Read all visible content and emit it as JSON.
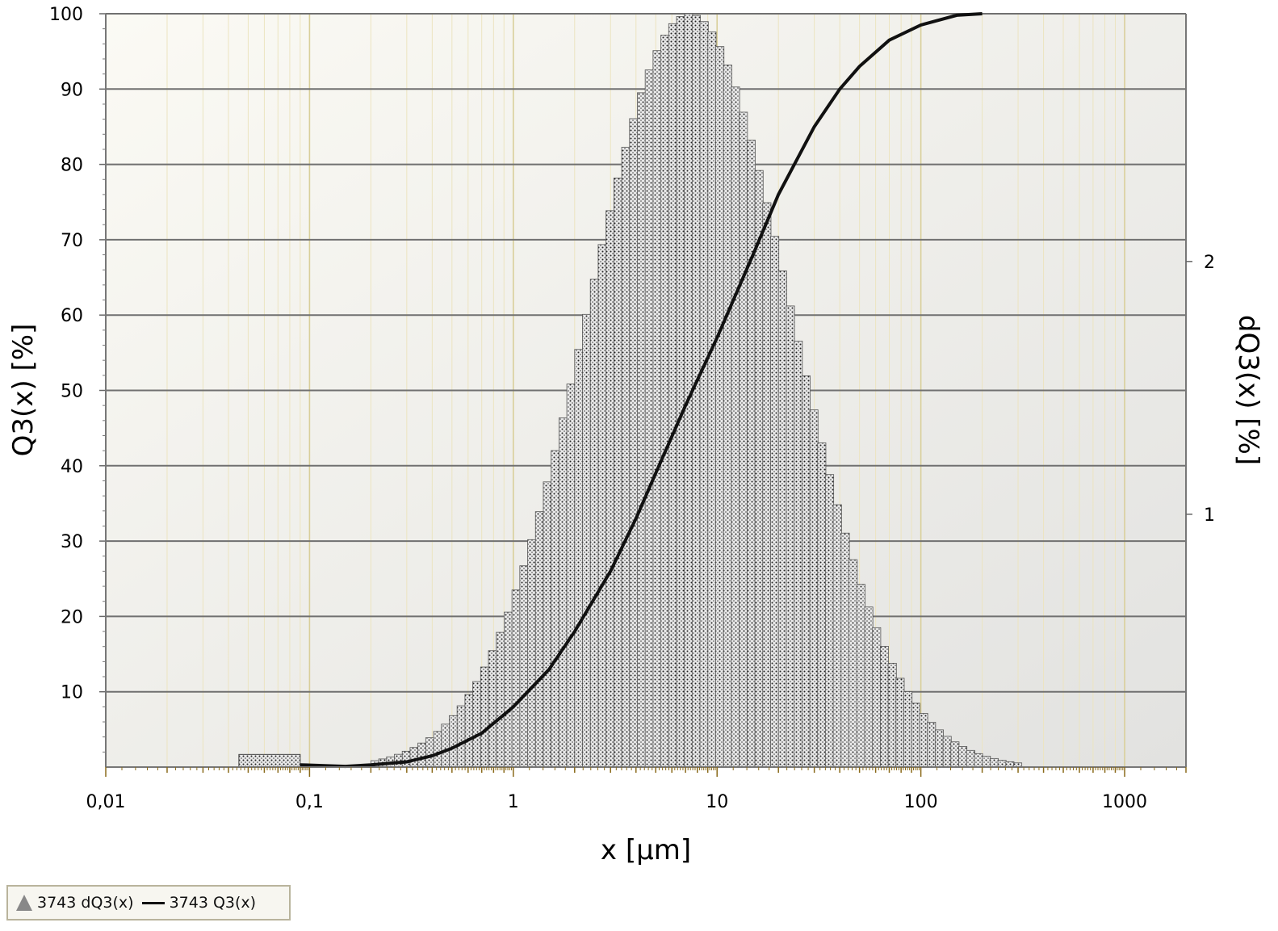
{
  "chart_data": {
    "type": "bar+line",
    "title": "",
    "xlabel": "x [µm]",
    "ylabel_left": "Q3(x) [%]",
    "ylabel_right": "dQ3(x) [%]",
    "x_scale": "log",
    "xlim": [
      0.01,
      2000
    ],
    "ylim_left": [
      0,
      100
    ],
    "ylim_right": [
      0,
      2.98
    ],
    "x_ticks": [
      {
        "value": 0.01,
        "label": "0,01"
      },
      {
        "value": 0.1,
        "label": "0,1"
      },
      {
        "value": 1,
        "label": "1"
      },
      {
        "value": 10,
        "label": "10"
      },
      {
        "value": 100,
        "label": "100"
      },
      {
        "value": 1000,
        "label": "1000"
      }
    ],
    "y_ticks_left": [
      {
        "value": 10,
        "label": "10"
      },
      {
        "value": 20,
        "label": "20"
      },
      {
        "value": 30,
        "label": "30"
      },
      {
        "value": 40,
        "label": "40"
      },
      {
        "value": 50,
        "label": "50"
      },
      {
        "value": 60,
        "label": "60"
      },
      {
        "value": 70,
        "label": "70"
      },
      {
        "value": 80,
        "label": "80"
      },
      {
        "value": 90,
        "label": "90"
      },
      {
        "value": 100,
        "label": "100"
      }
    ],
    "y_ticks_right": [
      {
        "value": 1,
        "label": "1"
      },
      {
        "value": 2,
        "label": "2"
      }
    ],
    "grid": true,
    "series": [
      {
        "name": "3743 dQ3(x)",
        "kind": "histogram",
        "axis": "right",
        "color": "#999999",
        "bins": [
          {
            "x0": 0.045,
            "x1": 0.09,
            "y": 0.05
          },
          {
            "x0": 0.09,
            "x1": 0.22,
            "y": 0.005
          }
        ],
        "gaussian_model": {
          "peak_x": 7.3,
          "peak_y": 2.98,
          "sigma_log10": 0.5,
          "bins_per_decade": 26,
          "x_start": 0.2,
          "x_end": 290
        }
      },
      {
        "name": "3743 Q3(x)",
        "kind": "line",
        "axis": "left",
        "color": "#111111",
        "points": [
          [
            0.09,
            0.3
          ],
          [
            0.15,
            0.1
          ],
          [
            0.2,
            0.3
          ],
          [
            0.3,
            0.7
          ],
          [
            0.4,
            1.5
          ],
          [
            0.5,
            2.5
          ],
          [
            0.7,
            4.5
          ],
          [
            1,
            8
          ],
          [
            1.5,
            13
          ],
          [
            2,
            18
          ],
          [
            3,
            26
          ],
          [
            4,
            33
          ],
          [
            5,
            39
          ],
          [
            7,
            48
          ],
          [
            10,
            57
          ],
          [
            15,
            68
          ],
          [
            20,
            76
          ],
          [
            30,
            85
          ],
          [
            40,
            90
          ],
          [
            50,
            93
          ],
          [
            70,
            96.5
          ],
          [
            100,
            98.5
          ],
          [
            150,
            99.8
          ],
          [
            200,
            100
          ]
        ]
      }
    ],
    "legend_position": "bottom-left"
  },
  "legend": {
    "item1": "3743 dQ3(x)",
    "item2": "3743 Q3(x)"
  },
  "colors": {
    "plot_background_top": "#fbfaf4",
    "plot_background_bottom": "#e2e2e0",
    "vertical_grid": "#e6dcaa",
    "horizontal_grid": "#707070",
    "axis_tick": "#8a6a1a"
  }
}
